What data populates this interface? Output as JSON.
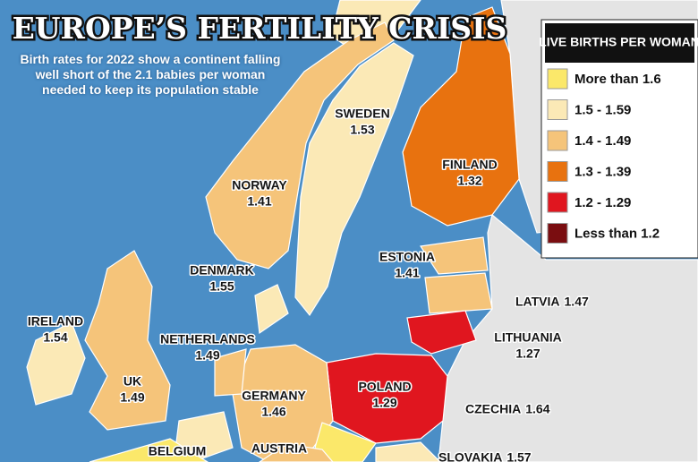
{
  "header": {
    "title": "EUROPE’S FERTILITY CRISIS",
    "subtitle": "Birth rates for 2022 show a continent falling well short of the 2.1 babies per woman needed to keep its population stable"
  },
  "legend": {
    "title": "LIVE BIRTHS PER WOMAN",
    "items": [
      {
        "label": "More than 1.6",
        "color": "#fbe86a"
      },
      {
        "label": "1.5 - 1.59",
        "color": "#fbe9b6"
      },
      {
        "label": "1.4 - 1.49",
        "color": "#f5c47a"
      },
      {
        "label": "1.3 - 1.39",
        "color": "#e8720f"
      },
      {
        "label": "1.2 - 1.29",
        "color": "#e0161f"
      },
      {
        "label": "Less than 1.2",
        "color": "#7a0d10"
      }
    ]
  },
  "countries": [
    {
      "name": "SWEDEN",
      "value": 1.53
    },
    {
      "name": "NORWAY",
      "value": 1.41
    },
    {
      "name": "FINLAND",
      "value": 1.32
    },
    {
      "name": "DENMARK",
      "value": 1.55
    },
    {
      "name": "ESTONIA",
      "value": 1.41
    },
    {
      "name": "LATVIA",
      "value": 1.47
    },
    {
      "name": "IRELAND",
      "value": 1.54
    },
    {
      "name": "NETHERLANDS",
      "value": 1.49
    },
    {
      "name": "LITHUANIA",
      "value": 1.27
    },
    {
      "name": "UK",
      "value": 1.49
    },
    {
      "name": "GERMANY",
      "value": 1.46
    },
    {
      "name": "POLAND",
      "value": 1.29
    },
    {
      "name": "CZECHIA",
      "value": 1.64
    },
    {
      "name": "BELGIUM"
    },
    {
      "name": "AUSTRIA"
    },
    {
      "name": "SLOVAKIA",
      "value": 1.57
    }
  ]
}
